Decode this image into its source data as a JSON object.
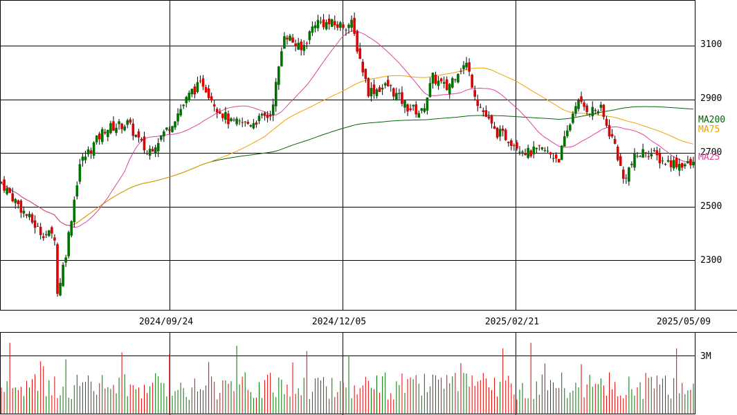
{
  "chart_data": {
    "type": "candlestick",
    "price_axis": {
      "ticks": [
        2300,
        2500,
        2700,
        2900,
        3100
      ],
      "range": [
        2115,
        3270
      ]
    },
    "date_axis": {
      "labels": [
        "2024/09/24",
        "2024/12/05",
        "2025/02/21",
        "2025/05/09"
      ]
    },
    "volume_axis": {
      "ticks": [
        "3M"
      ]
    },
    "moving_averages": [
      {
        "name": "MA200",
        "color": "#006400",
        "last_value": 2810
      },
      {
        "name": "MA75",
        "color": "#f0a000",
        "last_value": 2778
      },
      {
        "name": "MA25",
        "color": "#e040a0",
        "last_value": 2700
      }
    ],
    "candle_colors": {
      "up": "#007000",
      "down": "#e00000"
    },
    "volume_colors": {
      "up": "#007000",
      "down": "#e00000"
    },
    "ohlc_keypoints": [
      {
        "i": 0,
        "price": 2590
      },
      {
        "i": 8,
        "price": 2480
      },
      {
        "i": 14,
        "price": 2405
      },
      {
        "i": 19,
        "price": 2390
      },
      {
        "i": 20,
        "price": 2175
      },
      {
        "i": 23,
        "price": 2330
      },
      {
        "i": 28,
        "price": 2660
      },
      {
        "i": 37,
        "price": 2790
      },
      {
        "i": 45,
        "price": 2810
      },
      {
        "i": 52,
        "price": 2700
      },
      {
        "i": 60,
        "price": 2800
      },
      {
        "i": 68,
        "price": 2930
      },
      {
        "i": 72,
        "price": 2960
      },
      {
        "i": 77,
        "price": 2870
      },
      {
        "i": 82,
        "price": 2810
      },
      {
        "i": 88,
        "price": 2810
      },
      {
        "i": 96,
        "price": 2840
      },
      {
        "i": 99,
        "price": 3010
      },
      {
        "i": 101,
        "price": 3150
      },
      {
        "i": 107,
        "price": 3080
      },
      {
        "i": 112,
        "price": 3190
      },
      {
        "i": 120,
        "price": 3175
      },
      {
        "i": 125,
        "price": 3180
      },
      {
        "i": 128,
        "price": 3050
      },
      {
        "i": 131,
        "price": 2930
      },
      {
        "i": 138,
        "price": 2950
      },
      {
        "i": 145,
        "price": 2870
      },
      {
        "i": 150,
        "price": 2850
      },
      {
        "i": 154,
        "price": 2980
      },
      {
        "i": 159,
        "price": 2940
      },
      {
        "i": 163,
        "price": 3010
      },
      {
        "i": 166,
        "price": 3030
      },
      {
        "i": 170,
        "price": 2890
      },
      {
        "i": 176,
        "price": 2780
      },
      {
        "i": 180,
        "price": 2760
      },
      {
        "i": 184,
        "price": 2730
      },
      {
        "i": 188,
        "price": 2700
      },
      {
        "i": 193,
        "price": 2710
      },
      {
        "i": 199,
        "price": 2680
      },
      {
        "i": 203,
        "price": 2810
      },
      {
        "i": 205,
        "price": 2890
      },
      {
        "i": 210,
        "price": 2860
      },
      {
        "i": 214,
        "price": 2860
      },
      {
        "i": 216,
        "price": 2800
      },
      {
        "i": 219,
        "price": 2730
      },
      {
        "i": 222,
        "price": 2600
      },
      {
        "i": 226,
        "price": 2680
      },
      {
        "i": 230,
        "price": 2710
      },
      {
        "i": 236,
        "price": 2670
      },
      {
        "i": 242,
        "price": 2660
      },
      {
        "i": 246,
        "price": 2655
      }
    ]
  }
}
